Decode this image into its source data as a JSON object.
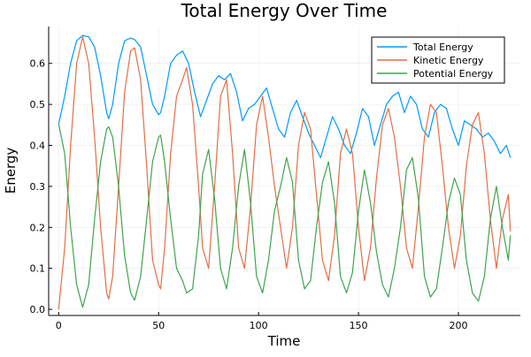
{
  "chart_data": {
    "type": "line",
    "title": "Total Energy Over Time",
    "xlabel": "Time",
    "ylabel": "Energy",
    "xlim": [
      -5,
      231
    ],
    "ylim": [
      -0.015,
      0.69
    ],
    "x_ticks": [
      0,
      50,
      100,
      150,
      200
    ],
    "x_tick_labels": [
      "0",
      "50",
      "100",
      "150",
      "200"
    ],
    "y_ticks": [
      0.0,
      0.1,
      0.2,
      0.3,
      0.4,
      0.5,
      0.6
    ],
    "y_tick_labels": [
      "0.0",
      "0.1",
      "0.2",
      "0.3",
      "0.4",
      "0.5",
      "0.6"
    ],
    "grid": true,
    "legend_position": "top-right",
    "series": [
      {
        "name": "Total Energy",
        "color": "#009AFA",
        "x": [
          0,
          3,
          6,
          9,
          12,
          15,
          18,
          21,
          24,
          25,
          27,
          30,
          33,
          36,
          38,
          41,
          44,
          47,
          50,
          51,
          53,
          56,
          59,
          62,
          65,
          68,
          71,
          74,
          77,
          80,
          83,
          86,
          89,
          92,
          95,
          98,
          101,
          104,
          107,
          110,
          113,
          116,
          119,
          122,
          125,
          128,
          131,
          134,
          137,
          140,
          143,
          146,
          149,
          152,
          155,
          158,
          161,
          164,
          167,
          170,
          173,
          176,
          179,
          182,
          185,
          188,
          191,
          194,
          197,
          200,
          203,
          206,
          209,
          212,
          215,
          218,
          221,
          224,
          226
        ],
        "y": [
          0.452,
          0.52,
          0.6,
          0.655,
          0.668,
          0.665,
          0.64,
          0.57,
          0.48,
          0.465,
          0.5,
          0.6,
          0.655,
          0.662,
          0.658,
          0.64,
          0.57,
          0.5,
          0.475,
          0.48,
          0.52,
          0.6,
          0.62,
          0.63,
          0.6,
          0.53,
          0.47,
          0.51,
          0.55,
          0.57,
          0.56,
          0.575,
          0.53,
          0.46,
          0.49,
          0.5,
          0.52,
          0.54,
          0.49,
          0.44,
          0.42,
          0.48,
          0.51,
          0.47,
          0.43,
          0.4,
          0.37,
          0.42,
          0.47,
          0.44,
          0.4,
          0.38,
          0.43,
          0.49,
          0.47,
          0.4,
          0.45,
          0.5,
          0.52,
          0.53,
          0.48,
          0.52,
          0.5,
          0.44,
          0.42,
          0.48,
          0.5,
          0.49,
          0.44,
          0.4,
          0.46,
          0.45,
          0.44,
          0.42,
          0.43,
          0.41,
          0.38,
          0.4,
          0.37
        ]
      },
      {
        "name": "Kinetic Energy",
        "color": "#E26F46",
        "x": [
          0,
          3,
          6,
          9,
          12,
          15,
          18,
          21,
          24,
          25,
          27,
          30,
          33,
          36,
          38,
          41,
          44,
          47,
          50,
          51,
          53,
          56,
          59,
          62,
          64,
          67,
          70,
          72,
          75,
          78,
          81,
          84,
          87,
          90,
          93,
          96,
          99,
          102,
          105,
          108,
          111,
          114,
          117,
          120,
          123,
          126,
          129,
          132,
          135,
          138,
          141,
          144,
          147,
          150,
          153,
          156,
          159,
          162,
          165,
          168,
          171,
          174,
          177,
          180,
          183,
          186,
          189,
          192,
          195,
          198,
          201,
          204,
          207,
          210,
          213,
          216,
          219,
          222,
          225,
          226
        ],
        "y": [
          0.0,
          0.15,
          0.4,
          0.6,
          0.665,
          0.6,
          0.42,
          0.2,
          0.04,
          0.025,
          0.08,
          0.3,
          0.53,
          0.63,
          0.638,
          0.56,
          0.35,
          0.12,
          0.06,
          0.05,
          0.15,
          0.38,
          0.52,
          0.56,
          0.59,
          0.5,
          0.3,
          0.15,
          0.1,
          0.3,
          0.52,
          0.56,
          0.38,
          0.15,
          0.1,
          0.25,
          0.45,
          0.52,
          0.42,
          0.3,
          0.2,
          0.1,
          0.2,
          0.4,
          0.48,
          0.44,
          0.28,
          0.12,
          0.07,
          0.18,
          0.38,
          0.44,
          0.38,
          0.2,
          0.07,
          0.15,
          0.32,
          0.45,
          0.49,
          0.42,
          0.3,
          0.15,
          0.1,
          0.25,
          0.42,
          0.5,
          0.48,
          0.35,
          0.2,
          0.1,
          0.18,
          0.35,
          0.45,
          0.48,
          0.38,
          0.22,
          0.1,
          0.22,
          0.28,
          0.19
        ]
      },
      {
        "name": "Potential Energy",
        "color": "#3EA44E",
        "x": [
          0,
          3,
          6,
          9,
          12,
          15,
          18,
          21,
          24,
          25,
          27,
          30,
          33,
          36,
          38,
          41,
          44,
          47,
          50,
          51,
          53,
          56,
          59,
          62,
          64,
          67,
          70,
          72,
          75,
          78,
          81,
          84,
          87,
          90,
          93,
          96,
          99,
          102,
          105,
          108,
          111,
          114,
          117,
          120,
          123,
          126,
          129,
          132,
          135,
          138,
          141,
          144,
          147,
          150,
          153,
          156,
          159,
          162,
          165,
          168,
          171,
          174,
          177,
          180,
          183,
          186,
          189,
          192,
          195,
          198,
          201,
          204,
          207,
          210,
          213,
          216,
          219,
          222,
          225,
          226
        ],
        "y": [
          0.452,
          0.38,
          0.2,
          0.06,
          0.005,
          0.06,
          0.22,
          0.36,
          0.44,
          0.445,
          0.42,
          0.3,
          0.13,
          0.04,
          0.022,
          0.08,
          0.22,
          0.36,
          0.42,
          0.425,
          0.36,
          0.22,
          0.1,
          0.07,
          0.04,
          0.05,
          0.18,
          0.33,
          0.39,
          0.27,
          0.1,
          0.05,
          0.15,
          0.3,
          0.39,
          0.26,
          0.08,
          0.04,
          0.12,
          0.24,
          0.3,
          0.37,
          0.31,
          0.12,
          0.05,
          0.07,
          0.2,
          0.31,
          0.36,
          0.26,
          0.08,
          0.04,
          0.09,
          0.24,
          0.34,
          0.26,
          0.14,
          0.06,
          0.03,
          0.1,
          0.2,
          0.34,
          0.37,
          0.27,
          0.08,
          0.03,
          0.05,
          0.15,
          0.26,
          0.32,
          0.28,
          0.12,
          0.04,
          0.02,
          0.08,
          0.22,
          0.3,
          0.2,
          0.12,
          0.18
        ]
      }
    ]
  }
}
